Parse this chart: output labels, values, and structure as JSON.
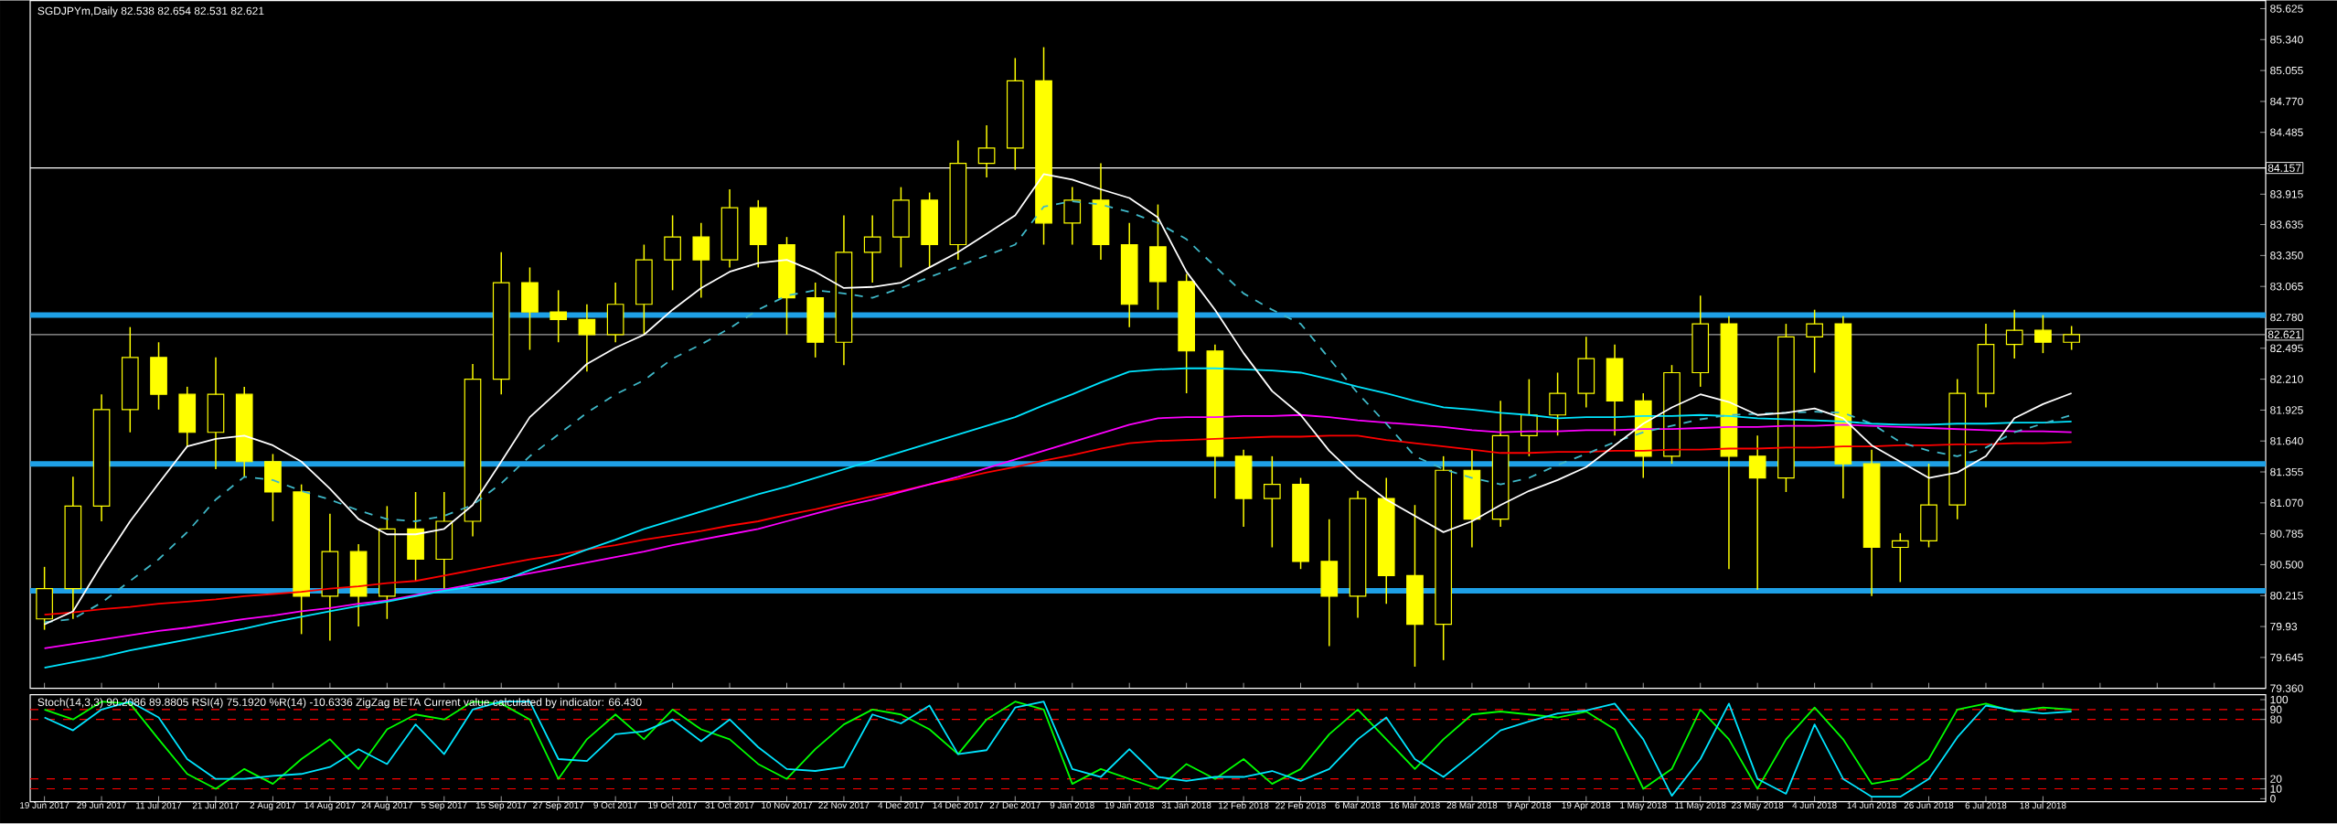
{
  "chart_data": [
    {
      "type": "candlestick",
      "title": "SGDJPYm,Daily  82.538 82.654 82.531 82.621",
      "color": "#ffff00",
      "categories": [
        null,
        null,
        null,
        null,
        null,
        null,
        null,
        null,
        null,
        null,
        null,
        null,
        null,
        null,
        null,
        null,
        null,
        null,
        null,
        null,
        null,
        null,
        null,
        null,
        null,
        null,
        null,
        null,
        null,
        null,
        null,
        null,
        null,
        null,
        null,
        null,
        null,
        null,
        null,
        null,
        null,
        null,
        null,
        null,
        null,
        null,
        null,
        null,
        null,
        null,
        null,
        null,
        null,
        null,
        null,
        null,
        null,
        null,
        null,
        null,
        null,
        null,
        null,
        null,
        null,
        null,
        null,
        null,
        null,
        null,
        null,
        null
      ],
      "ohlc": [
        [
          80.0,
          80.48,
          79.9,
          80.28
        ],
        [
          80.28,
          81.31,
          80.0,
          81.04
        ],
        [
          81.04,
          82.07,
          80.9,
          81.93
        ],
        [
          81.93,
          82.69,
          81.72,
          82.41
        ],
        [
          82.41,
          82.55,
          81.93,
          82.07
        ],
        [
          82.07,
          82.14,
          81.59,
          81.72
        ],
        [
          81.72,
          82.41,
          81.38,
          82.07
        ],
        [
          82.07,
          82.14,
          81.31,
          81.45
        ],
        [
          81.45,
          81.52,
          80.9,
          81.17
        ],
        [
          81.17,
          81.24,
          79.86,
          80.21
        ],
        [
          80.21,
          80.97,
          79.8,
          80.62
        ],
        [
          80.62,
          80.69,
          79.93,
          80.21
        ],
        [
          80.21,
          81.04,
          80.0,
          80.83
        ],
        [
          80.83,
          81.17,
          80.35,
          80.55
        ],
        [
          80.55,
          81.17,
          80.28,
          80.9
        ],
        [
          80.9,
          82.35,
          80.76,
          82.21
        ],
        [
          82.21,
          83.38,
          82.07,
          83.1
        ],
        [
          83.1,
          83.24,
          82.48,
          82.83
        ],
        [
          82.83,
          83.03,
          82.55,
          82.76
        ],
        [
          82.76,
          82.9,
          82.28,
          82.62
        ],
        [
          82.62,
          83.1,
          82.55,
          82.9
        ],
        [
          82.9,
          83.45,
          82.62,
          83.31
        ],
        [
          83.31,
          83.72,
          83.03,
          83.52
        ],
        [
          83.52,
          83.65,
          82.96,
          83.31
        ],
        [
          83.31,
          83.96,
          83.24,
          83.79
        ],
        [
          83.79,
          83.86,
          83.24,
          83.45
        ],
        [
          83.45,
          83.52,
          82.62,
          82.96
        ],
        [
          82.96,
          83.1,
          82.41,
          82.55
        ],
        [
          82.55,
          83.72,
          82.34,
          83.38
        ],
        [
          83.38,
          83.72,
          83.1,
          83.52
        ],
        [
          83.52,
          83.98,
          83.24,
          83.86
        ],
        [
          83.86,
          83.93,
          83.24,
          83.45
        ],
        [
          83.45,
          84.41,
          83.31,
          84.2
        ],
        [
          84.2,
          84.55,
          84.07,
          84.34
        ],
        [
          84.34,
          85.17,
          84.14,
          84.96
        ],
        [
          84.96,
          85.27,
          83.45,
          83.65
        ],
        [
          83.65,
          83.98,
          83.45,
          83.86
        ],
        [
          83.86,
          84.2,
          83.31,
          83.45
        ],
        [
          83.45,
          83.65,
          82.69,
          82.9
        ],
        [
          83.43,
          83.82,
          82.85,
          83.11
        ],
        [
          83.11,
          83.18,
          82.08,
          82.47
        ],
        [
          82.47,
          82.53,
          81.11,
          81.5
        ],
        [
          81.5,
          81.56,
          80.85,
          81.11
        ],
        [
          81.11,
          81.5,
          80.66,
          81.24
        ],
        [
          81.24,
          81.3,
          80.46,
          80.53
        ],
        [
          80.53,
          80.92,
          79.75,
          80.21
        ],
        [
          80.21,
          81.18,
          80.01,
          81.11
        ],
        [
          81.11,
          81.3,
          80.14,
          80.4
        ],
        [
          80.4,
          81.05,
          79.56,
          79.95
        ],
        [
          79.95,
          81.5,
          79.62,
          81.37
        ],
        [
          81.37,
          81.56,
          80.66,
          80.92
        ],
        [
          80.92,
          82.01,
          80.85,
          81.69
        ],
        [
          81.69,
          82.21,
          81.5,
          81.88
        ],
        [
          81.88,
          82.27,
          81.69,
          82.08
        ],
        [
          82.08,
          82.6,
          81.95,
          82.4
        ],
        [
          82.4,
          82.53,
          81.69,
          82.01
        ],
        [
          82.01,
          82.08,
          81.3,
          81.5
        ],
        [
          81.5,
          82.34,
          81.43,
          82.27
        ],
        [
          82.27,
          82.98,
          82.14,
          82.72
        ],
        [
          82.72,
          82.79,
          80.46,
          81.5
        ],
        [
          81.5,
          81.69,
          80.27,
          81.3
        ],
        [
          81.3,
          82.72,
          81.17,
          82.6
        ],
        [
          82.6,
          82.85,
          82.27,
          82.72
        ],
        [
          82.72,
          82.79,
          81.11,
          81.43
        ],
        [
          81.43,
          81.56,
          80.21,
          80.66
        ],
        [
          80.66,
          80.79,
          80.34,
          80.72
        ],
        [
          80.72,
          81.43,
          80.66,
          81.05
        ],
        [
          81.05,
          82.21,
          80.92,
          82.08
        ],
        [
          82.08,
          82.72,
          81.95,
          82.53
        ],
        [
          82.53,
          82.85,
          82.4,
          82.66
        ],
        [
          82.66,
          82.8,
          82.45,
          82.55
        ],
        [
          82.55,
          82.7,
          82.48,
          82.62
        ]
      ],
      "series": [
        {
          "type": "line",
          "color": "#ff0000",
          "values": [
            80.04,
            80.06,
            80.09,
            80.11,
            80.14,
            80.16,
            80.18,
            80.21,
            80.23,
            80.25,
            80.28,
            80.3,
            80.33,
            80.35,
            80.4,
            80.45,
            80.5,
            80.55,
            80.59,
            80.64,
            80.68,
            80.73,
            80.77,
            80.81,
            80.86,
            80.9,
            80.96,
            81.01,
            81.07,
            81.13,
            81.18,
            81.24,
            81.29,
            81.35,
            81.4,
            81.46,
            81.51,
            81.57,
            81.62,
            81.64,
            81.65,
            81.66,
            81.67,
            81.68,
            81.68,
            81.69,
            81.69,
            81.65,
            81.62,
            81.59,
            81.56,
            81.53,
            81.53,
            81.54,
            81.54,
            81.55,
            81.55,
            81.56,
            81.56,
            81.57,
            81.57,
            81.58,
            81.58,
            81.59,
            81.59,
            81.6,
            81.6,
            81.61,
            81.61,
            81.62,
            81.62,
            81.63
          ]
        },
        {
          "type": "line",
          "color": "#ff00ff",
          "values": [
            79.73,
            79.77,
            79.81,
            79.85,
            79.89,
            79.92,
            79.96,
            80.0,
            80.03,
            80.07,
            80.1,
            80.14,
            80.17,
            80.22,
            80.27,
            80.32,
            80.37,
            80.42,
            80.47,
            80.52,
            80.57,
            80.62,
            80.68,
            80.73,
            80.78,
            80.83,
            80.9,
            80.97,
            81.04,
            81.1,
            81.17,
            81.24,
            81.31,
            81.39,
            81.47,
            81.55,
            81.63,
            81.71,
            81.79,
            81.85,
            81.86,
            81.86,
            81.87,
            81.87,
            81.88,
            81.86,
            81.83,
            81.81,
            81.79,
            81.77,
            81.74,
            81.72,
            81.73,
            81.73,
            81.74,
            81.74,
            81.75,
            81.75,
            81.76,
            81.77,
            81.77,
            81.78,
            81.78,
            81.79,
            81.78,
            81.77,
            81.76,
            81.75,
            81.74,
            81.73,
            81.73,
            81.72
          ]
        },
        {
          "type": "line",
          "color": "#00e5ff",
          "values": [
            79.55,
            79.6,
            79.65,
            79.71,
            79.76,
            79.81,
            79.86,
            79.91,
            79.97,
            80.02,
            80.07,
            80.12,
            80.16,
            80.21,
            80.26,
            80.3,
            80.35,
            80.45,
            80.54,
            80.64,
            80.73,
            80.83,
            80.91,
            80.99,
            81.07,
            81.15,
            81.22,
            81.3,
            81.38,
            81.46,
            81.54,
            81.62,
            81.7,
            81.78,
            81.86,
            81.97,
            82.07,
            82.18,
            82.28,
            82.3,
            82.31,
            82.31,
            82.3,
            82.29,
            82.27,
            82.21,
            82.14,
            82.08,
            82.01,
            81.95,
            81.93,
            81.9,
            81.88,
            81.85,
            81.86,
            81.86,
            81.87,
            81.87,
            81.88,
            81.87,
            81.85,
            81.84,
            81.83,
            81.82,
            81.8,
            81.79,
            81.79,
            81.8,
            81.8,
            81.81,
            81.81,
            81.82
          ]
        },
        {
          "type": "line",
          "color": "#3fb8c8",
          "line_style": "dashed",
          "values": [
            79.97,
            80.0,
            80.15,
            80.35,
            80.55,
            80.8,
            81.1,
            81.31,
            81.28,
            81.18,
            81.1,
            81.0,
            80.92,
            80.9,
            80.95,
            81.05,
            81.25,
            81.5,
            81.7,
            81.9,
            82.07,
            82.2,
            82.4,
            82.53,
            82.68,
            82.85,
            82.98,
            83.03,
            83.0,
            82.96,
            83.05,
            83.15,
            83.25,
            83.35,
            83.45,
            83.8,
            83.85,
            83.82,
            83.75,
            83.65,
            83.5,
            83.25,
            83.0,
            82.85,
            82.72,
            82.4,
            82.08,
            81.8,
            81.5,
            81.38,
            81.3,
            81.24,
            81.3,
            81.42,
            81.52,
            81.63,
            81.72,
            81.78,
            81.84,
            81.88,
            81.89,
            81.9,
            81.91,
            81.9,
            81.8,
            81.63,
            81.55,
            81.5,
            81.58,
            81.72,
            81.8,
            81.88
          ]
        },
        {
          "type": "line",
          "color": "#ffffff",
          "values": [
            79.95,
            80.07,
            80.5,
            80.9,
            81.25,
            81.59,
            81.66,
            81.69,
            81.6,
            81.45,
            81.2,
            80.92,
            80.78,
            80.78,
            80.83,
            81.05,
            81.45,
            81.86,
            82.1,
            82.35,
            82.5,
            82.62,
            82.85,
            83.05,
            83.2,
            83.28,
            83.31,
            83.2,
            83.05,
            83.06,
            83.1,
            83.24,
            83.38,
            83.55,
            83.72,
            84.1,
            84.05,
            83.96,
            83.88,
            83.7,
            83.2,
            82.85,
            82.45,
            82.1,
            81.88,
            81.55,
            81.3,
            81.1,
            80.95,
            80.8,
            80.9,
            81.05,
            81.18,
            81.28,
            81.4,
            81.6,
            81.8,
            81.95,
            82.07,
            82.0,
            81.88,
            81.9,
            81.94,
            81.85,
            81.6,
            81.45,
            81.3,
            81.35,
            81.5,
            81.85,
            81.98,
            82.08
          ]
        }
      ],
      "ylim": [
        79.36,
        85.7
      ],
      "yticks": [
        {
          "value": 79.36,
          "label": "79.360"
        },
        79.645,
        79.93,
        80.215,
        {
          "value": 80.5,
          "label": "80.500"
        },
        80.785,
        {
          "value": 81.07,
          "label": "81.070"
        },
        81.355,
        {
          "value": 81.64,
          "label": "81.640"
        },
        81.925,
        {
          "value": 82.21,
          "label": "82.210"
        },
        82.495,
        {
          "value": 82.78,
          "label": "82.780"
        },
        83.065,
        {
          "value": 83.35,
          "label": "83.350"
        },
        83.635,
        83.915,
        84.485,
        {
          "value": 84.77,
          "label": "84.770"
        },
        85.055,
        {
          "value": 85.34,
          "label": "85.340"
        },
        85.625
      ],
      "ref_lines": [
        {
          "axis": "y",
          "value": 82.8,
          "color": "#1ea0e6",
          "line_style": "solid"
        },
        {
          "axis": "y",
          "value": 81.43,
          "color": "#1ea0e6",
          "line_style": "solid"
        },
        {
          "axis": "y",
          "value": 80.26,
          "color": "#1ea0e6",
          "line_style": "solid"
        },
        {
          "axis": "y",
          "value": 82.621,
          "color": "#a0a0a0",
          "line_style": "solid",
          "label": "82.621"
        },
        {
          "axis": "y",
          "value": 84.157,
          "color": "#ffffff",
          "line_style": "solid",
          "label": "84.157"
        }
      ]
    },
    {
      "type": "line",
      "title": "Stoch(14,3,3) 90.2086 89.8805  RSI(4) 75.1920  %R(14) -10.6336  ZigZag BETA    Current value calculated by indicator: 66.430",
      "categories": [
        "19 Jun 2017",
        null,
        "29 Jun 2017",
        null,
        "11 Jul 2017",
        null,
        "21 Jul 2017",
        null,
        "2 Aug 2017",
        null,
        "14 Aug 2017",
        null,
        "24 Aug 2017",
        null,
        "5 Sep 2017",
        null,
        "15 Sep 2017",
        null,
        "27 Sep 2017",
        null,
        "9 Oct 2017",
        null,
        "19 Oct 2017",
        null,
        "31 Oct 2017",
        null,
        "10 Nov 2017",
        null,
        "22 Nov 2017",
        null,
        "4 Dec 2017",
        null,
        "14 Dec 2017",
        null,
        "27 Dec 2017",
        null,
        "9 Jan 2018",
        null,
        "19 Jan 2018",
        null,
        "31 Jan 2018",
        null,
        "12 Feb 2018",
        null,
        "22 Feb 2018",
        null,
        "6 Mar 2018",
        null,
        "16 Mar 2018",
        null,
        "28 Mar 2018",
        null,
        "9 Apr 2018",
        null,
        "19 Apr 2018",
        null,
        "1 May 2018",
        null,
        "11 May 2018",
        null,
        "23 May 2018",
        null,
        "4 Jun 2018",
        null,
        "14 Jun 2018",
        null,
        "26 Jun 2018",
        null,
        "6 Jul 2018",
        null,
        "18 Jul 2018",
        null
      ],
      "series": [
        {
          "color": "#00ff00",
          "values": [
            90,
            80,
            98,
            96,
            60,
            25,
            10,
            30,
            15,
            40,
            60,
            30,
            70,
            85,
            80,
            98,
            96,
            80,
            20,
            60,
            85,
            60,
            90,
            70,
            60,
            35,
            20,
            50,
            75,
            90,
            85,
            70,
            45,
            80,
            98,
            90,
            15,
            30,
            20,
            10,
            35,
            20,
            40,
            15,
            30,
            65,
            90,
            60,
            30,
            60,
            85,
            88,
            85,
            82,
            88,
            70,
            10,
            30,
            90,
            60,
            10,
            60,
            92,
            60,
            15,
            20,
            40,
            90,
            96,
            88,
            92,
            90
          ]
        },
        {
          "color": "#00e5ff",
          "values": [
            82,
            69,
            90,
            98,
            82,
            40,
            20,
            20,
            23,
            25,
            32,
            50,
            35,
            75,
            45,
            90,
            98,
            98,
            40,
            38,
            65,
            68,
            80,
            58,
            80,
            52,
            30,
            28,
            32,
            85,
            76,
            94,
            45,
            49,
            92,
            98,
            30,
            22,
            50,
            22,
            18,
            22,
            22,
            28,
            18,
            30,
            60,
            82,
            40,
            22,
            45,
            69,
            78,
            86,
            89,
            96,
            60,
            3,
            40,
            96,
            20,
            5,
            75,
            20,
            2,
            2,
            20,
            62,
            94,
            89,
            86,
            88
          ]
        }
      ],
      "ylim": [
        -3,
        105
      ],
      "yticks": [
        0,
        10,
        20,
        80,
        90,
        100
      ],
      "ref_lines": [
        {
          "axis": "y",
          "value": 10,
          "color": "#ff0000",
          "line_style": "dashed"
        },
        {
          "axis": "y",
          "value": 20,
          "color": "#ff0000",
          "line_style": "dashed"
        },
        {
          "axis": "y",
          "value": 80,
          "color": "#ff0000",
          "line_style": "dashed"
        },
        {
          "axis": "y",
          "value": 90,
          "color": "#ff0000",
          "line_style": "dashed"
        }
      ]
    }
  ]
}
